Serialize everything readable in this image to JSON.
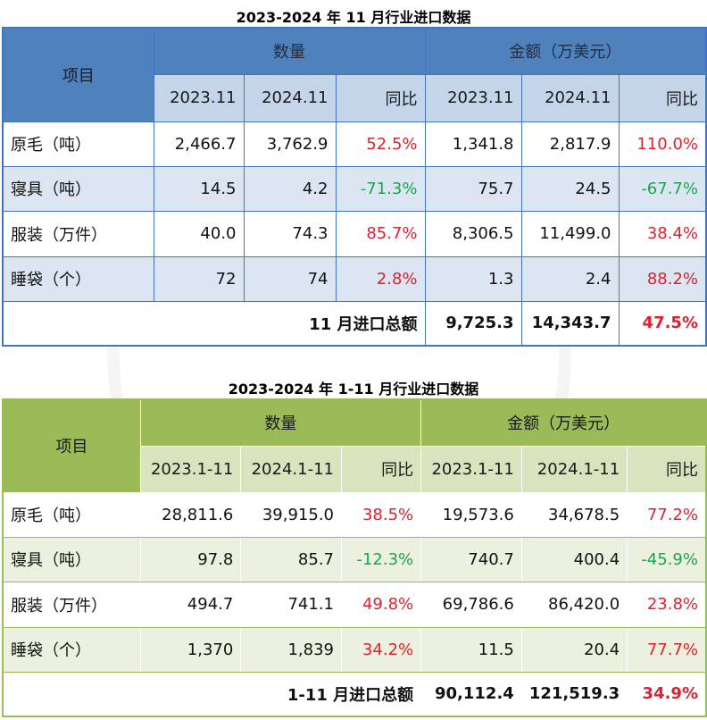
{
  "monthly": {
    "title": "2023-2024 年 11 月行业进口数据",
    "item_header": "项目",
    "qty_header": "数量",
    "amt_header": "金额（万美元）",
    "sub_headers": [
      "2023.11",
      "2024.11",
      "同比",
      "2023.11",
      "2024.11",
      "同比"
    ],
    "rows": [
      {
        "name": "原毛（吨）",
        "q1": "2,466.7",
        "q2": "3,762.9",
        "qy": "52.5%",
        "a1": "1,341.8",
        "a2": "2,817.9",
        "ay": "110.0%"
      },
      {
        "name": "寝具（吨）",
        "q1": "14.5",
        "q2": "4.2",
        "qy": "-71.3%",
        "a1": "75.7",
        "a2": "24.5",
        "ay": "-67.7%"
      },
      {
        "name": "服装（万件）",
        "q1": "40.0",
        "q2": "74.3",
        "qy": "85.7%",
        "a1": "8,306.5",
        "a2": "11,499.0",
        "ay": "38.4%"
      },
      {
        "name": "睡袋（个）",
        "q1": "72",
        "q2": "74",
        "qy": "2.8%",
        "a1": "1.3",
        "a2": "2.4",
        "ay": "88.2%"
      }
    ],
    "total": {
      "label": "11 月进口总额",
      "a1": "9,725.3",
      "a2": "14,343.7",
      "ay": "47.5%"
    }
  },
  "cumulative": {
    "title": "2023-2024 年 1-11 月行业进口数据",
    "item_header": "项目",
    "qty_header": "数量",
    "amt_header": "金额（万美元）",
    "sub_headers": [
      "2023.1-11",
      "2024.1-11",
      "同比",
      "2023.1-11",
      "2024.1-11",
      "同比"
    ],
    "rows": [
      {
        "name": "原毛（吨）",
        "q1": "28,811.6",
        "q2": "39,915.0",
        "qy": "38.5%",
        "a1": "19,573.6",
        "a2": "34,678.5",
        "ay": "77.2%"
      },
      {
        "name": "寝具（吨）",
        "q1": "97.8",
        "q2": "85.7",
        "qy": "-12.3%",
        "a1": "740.7",
        "a2": "400.4",
        "ay": "-45.9%"
      },
      {
        "name": "服装（万件）",
        "q1": "494.7",
        "q2": "741.1",
        "qy": "49.8%",
        "a1": "69,786.6",
        "a2": "86,420.0",
        "ay": "23.8%"
      },
      {
        "name": "睡袋（个）",
        "q1": "1,370",
        "q2": "1,839",
        "qy": "34.2%",
        "a1": "11.5",
        "a2": "20.4",
        "ay": "77.7%"
      }
    ],
    "total": {
      "label": "1-11 月进口总额",
      "a1": "90,112.4",
      "a2": "121,519.3",
      "ay": "34.9%"
    }
  },
  "colors": {
    "blue_header": "#4f81bd",
    "blue_subheader": "#c4d5ea",
    "blue_band": "#dce6f2",
    "green_header": "#9bbb59",
    "green_subheader": "#d7e4bd",
    "green_band": "#ebf1de",
    "positive": "#e0202c",
    "negative": "#1aa650"
  }
}
